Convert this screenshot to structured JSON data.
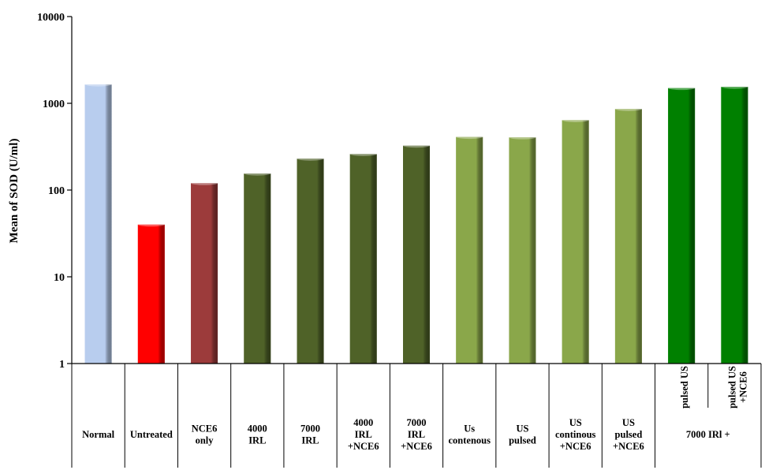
{
  "chart_data": {
    "type": "bar",
    "ylabel": "Mean of SOD (U/ml)",
    "yscale": "log",
    "ylim": [
      1,
      10000
    ],
    "yticks": [
      "1",
      "10",
      "100",
      "1000",
      "10000"
    ],
    "grid": false,
    "legend": "none",
    "categories": [
      {
        "lines": [
          "Normal"
        ],
        "value": 1650,
        "color": "#b8cdee"
      },
      {
        "lines": [
          "Untreated"
        ],
        "value": 40,
        "color": "#ff0000"
      },
      {
        "lines": [
          "NCE6",
          "only"
        ],
        "value": 120,
        "color": "#9c3b3b"
      },
      {
        "lines": [
          "4000",
          "IRL"
        ],
        "value": 155,
        "color": "#4f6228"
      },
      {
        "lines": [
          "7000",
          "IRL"
        ],
        "value": 230,
        "color": "#4f6228"
      },
      {
        "lines": [
          "4000",
          "IRL",
          "+NCE6"
        ],
        "value": 260,
        "color": "#4f6228"
      },
      {
        "lines": [
          "7000",
          "IRL",
          "+NCE6"
        ],
        "value": 325,
        "color": "#4f6228"
      },
      {
        "lines": [
          "Us",
          "contenous"
        ],
        "value": 410,
        "color": "#8aa74a"
      },
      {
        "lines": [
          "US",
          "pulsed"
        ],
        "value": 405,
        "color": "#8aa74a"
      },
      {
        "lines": [
          "US",
          "continous",
          "+NCE6"
        ],
        "value": 640,
        "color": "#8aa74a"
      },
      {
        "lines": [
          "US",
          "pulsed",
          "+NCE6"
        ],
        "value": 860,
        "color": "#8aa74a"
      },
      {
        "lines": [
          "pulsed US"
        ],
        "value": 1500,
        "color": "#008000",
        "group_lines": "rotated"
      },
      {
        "lines": [
          "pulsed US",
          "+NCE6"
        ],
        "value": 1550,
        "color": "#008000",
        "group_lines": "rotated"
      }
    ],
    "group_label": "7000 IRl +"
  }
}
